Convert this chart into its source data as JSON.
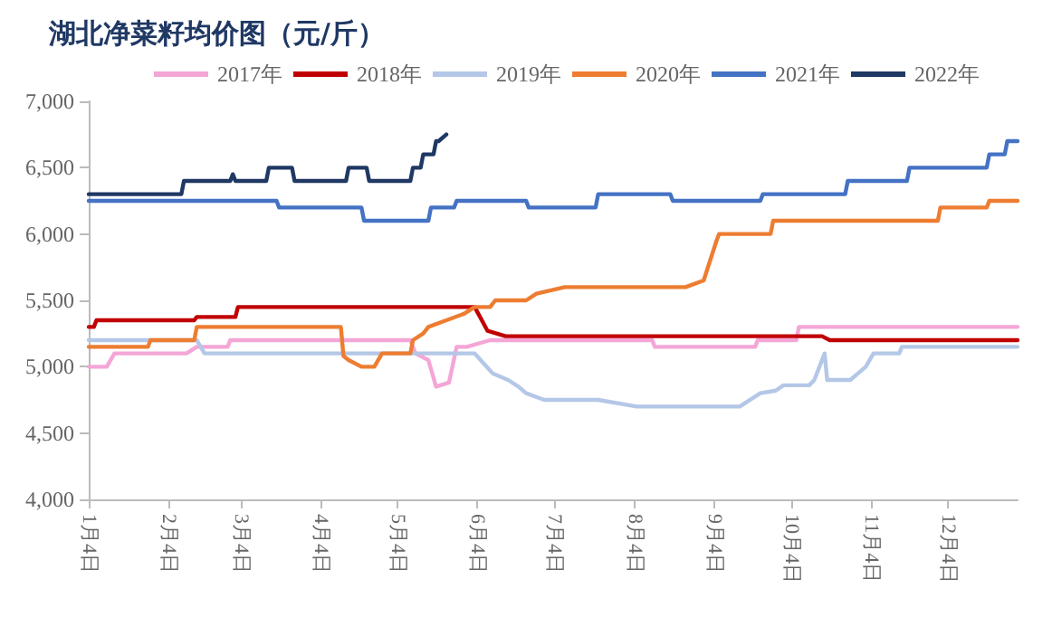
{
  "chart_data": {
    "type": "line",
    "title": "湖北净菜籽均价图（元/斤）",
    "xlim": [
      "--01-04",
      "--12-31"
    ],
    "xticks": [
      {
        "value": "--01-04",
        "label": "1月4日"
      },
      {
        "value": "--02-04",
        "label": "2月4日"
      },
      {
        "value": "--03-04",
        "label": "3月4日"
      },
      {
        "value": "--04-04",
        "label": "4月4日"
      },
      {
        "value": "--05-04",
        "label": "5月4日"
      },
      {
        "value": "--06-04",
        "label": "6月4日"
      },
      {
        "value": "--07-04",
        "label": "7月4日"
      },
      {
        "value": "--08-04",
        "label": "8月4日"
      },
      {
        "value": "--09-04",
        "label": "9月4日"
      },
      {
        "value": "--10-04",
        "label": "10月4日"
      },
      {
        "value": "--11-04",
        "label": "11月4日"
      },
      {
        "value": "--12-04",
        "label": "12月4日"
      }
    ],
    "ylim": [
      4000,
      7000
    ],
    "yticks": [
      {
        "value": 4000,
        "label": "4,000"
      },
      {
        "value": 4500,
        "label": "4,500"
      },
      {
        "value": 5000,
        "label": "5,000"
      },
      {
        "value": 5500,
        "label": "5,500"
      },
      {
        "value": 6000,
        "label": "6,000"
      },
      {
        "value": 6500,
        "label": "6,500"
      },
      {
        "value": 7000,
        "label": "7,000"
      }
    ],
    "grid": false,
    "legend": "top",
    "marker": "none",
    "line_style": "solid",
    "series": [
      {
        "name": "2017年",
        "color": "#f4a6d7",
        "x": [
          "--01-04",
          "--01-11",
          "--01-14",
          "--02-11",
          "--02-15",
          "--02-18",
          "--02-27",
          "--02-28",
          "--05-09",
          "--05-11",
          "--05-16",
          "--05-19",
          "--05-24",
          "--05-27",
          "--05-31",
          "--06-09",
          "--08-11",
          "--08-12",
          "--09-20",
          "--09-21",
          "--10-06",
          "--10-07",
          "--12-31"
        ],
        "values": [
          5000,
          5000,
          5100,
          5100,
          5150,
          5150,
          5150,
          5200,
          5200,
          5100,
          5050,
          4850,
          4880,
          5150,
          5150,
          5200,
          5200,
          5150,
          5150,
          5200,
          5200,
          5300,
          5300
        ]
      },
      {
        "name": "2018年",
        "color": "#c00000",
        "x": [
          "--01-04",
          "--01-06",
          "--01-07",
          "--02-14",
          "--02-15",
          "--03-02",
          "--03-03",
          "--06-03",
          "--06-08",
          "--06-15",
          "--10-16",
          "--10-19",
          "--12-31"
        ],
        "values": [
          5300,
          5300,
          5350,
          5350,
          5375,
          5375,
          5450,
          5450,
          5270,
          5230,
          5230,
          5200,
          5200
        ]
      },
      {
        "name": "2019年",
        "color": "#b4c7e7",
        "x": [
          "--01-04",
          "--02-15",
          "--02-18",
          "--06-03",
          "--06-10",
          "--06-16",
          "--06-20",
          "--06-23",
          "--06-30",
          "--07-21",
          "--08-05",
          "--09-14",
          "--09-22",
          "--09-28",
          "--10-01",
          "--10-11",
          "--10-13",
          "--10-17",
          "--10-18",
          "--10-27",
          "--10-30",
          "--11-02",
          "--11-05",
          "--11-15",
          "--11-16",
          "--12-31"
        ],
        "values": [
          5200,
          5200,
          5100,
          5100,
          4950,
          4900,
          4850,
          4800,
          4750,
          4750,
          4700,
          4700,
          4800,
          4820,
          4860,
          4860,
          4900,
          5100,
          4900,
          4900,
          4950,
          5000,
          5100,
          5100,
          5150,
          5150
        ]
      },
      {
        "name": "2020年",
        "color": "#ed7d31",
        "x": [
          "--01-04",
          "--01-27",
          "--01-28",
          "--02-14",
          "--02-15",
          "--04-12",
          "--04-13",
          "--04-15",
          "--04-20",
          "--04-25",
          "--04-28",
          "--05-09",
          "--05-10",
          "--05-14",
          "--05-16",
          "--05-23",
          "--05-30",
          "--06-03",
          "--06-09",
          "--06-11",
          "--06-23",
          "--06-27",
          "--07-08",
          "--08-24",
          "--08-31",
          "--09-05",
          "--09-06",
          "--09-26",
          "--09-27",
          "--11-30",
          "--12-01",
          "--12-19",
          "--12-20",
          "--12-31"
        ],
        "values": [
          5150,
          5150,
          5200,
          5200,
          5300,
          5300,
          5080,
          5050,
          5000,
          5000,
          5100,
          5100,
          5200,
          5250,
          5300,
          5350,
          5400,
          5450,
          5450,
          5500,
          5500,
          5550,
          5600,
          5600,
          5650,
          5950,
          6000,
          6000,
          6100,
          6100,
          6200,
          6200,
          6250,
          6250
        ]
      },
      {
        "name": "2021年",
        "color": "#4472c4",
        "x": [
          "--01-04",
          "--03-18",
          "--03-19",
          "--04-20",
          "--04-21",
          "--05-16",
          "--05-17",
          "--05-26",
          "--05-27",
          "--06-23",
          "--06-24",
          "--07-20",
          "--07-21",
          "--08-18",
          "--08-19",
          "--09-22",
          "--09-23",
          "--10-25",
          "--10-26",
          "--11-18",
          "--11-19",
          "--12-19",
          "--12-20",
          "--12-26",
          "--12-27",
          "--12-31"
        ],
        "values": [
          6250,
          6250,
          6200,
          6200,
          6100,
          6100,
          6200,
          6200,
          6250,
          6250,
          6200,
          6200,
          6300,
          6300,
          6250,
          6250,
          6300,
          6300,
          6400,
          6400,
          6500,
          6500,
          6600,
          6600,
          6700,
          6700
        ]
      },
      {
        "name": "2022年",
        "color": "#1f3864",
        "x": [
          "--01-04",
          "--02-09",
          "--02-10",
          "--02-28",
          "--03-01",
          "--03-02",
          "--03-14",
          "--03-15",
          "--03-24",
          "--03-25",
          "--04-14",
          "--04-15",
          "--04-22",
          "--04-23",
          "--05-09",
          "--05-10",
          "--05-13",
          "--05-14",
          "--05-18",
          "--05-19",
          "--05-20",
          "--05-23"
        ],
        "values": [
          6300,
          6300,
          6400,
          6400,
          6450,
          6400,
          6400,
          6500,
          6500,
          6400,
          6400,
          6500,
          6500,
          6400,
          6400,
          6500,
          6500,
          6600,
          6600,
          6700,
          6700,
          6750
        ]
      }
    ]
  }
}
